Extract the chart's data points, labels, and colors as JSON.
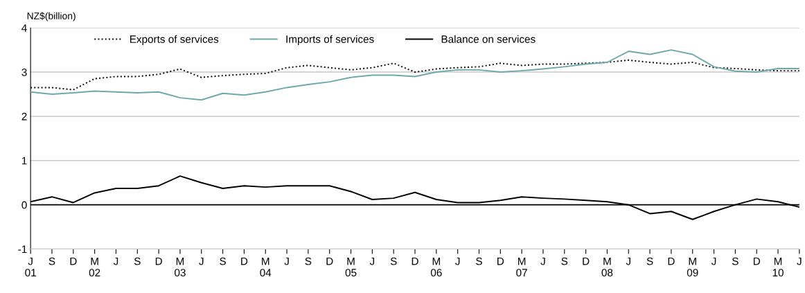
{
  "chart_data": {
    "type": "line",
    "ylabel": "NZ$(billion)",
    "categories": [
      "J\n01",
      "S",
      "D",
      "M\n02",
      "J",
      "S",
      "D",
      "M\n03",
      "J",
      "S",
      "D",
      "M\n04",
      "J",
      "S",
      "D",
      "M\n05",
      "J",
      "S",
      "D",
      "M\n06",
      "J",
      "S",
      "D",
      "M\n07",
      "J",
      "S",
      "D",
      "M\n08",
      "J",
      "S",
      "D",
      "M\n09",
      "J",
      "S",
      "D",
      "M\n10",
      "J"
    ],
    "series": [
      {
        "name": "Exports of services",
        "color": "#000000",
        "line_style": "dotted",
        "values": [
          2.65,
          2.65,
          2.6,
          2.85,
          2.9,
          2.9,
          2.95,
          3.07,
          2.88,
          2.92,
          2.95,
          2.97,
          3.1,
          3.15,
          3.1,
          3.05,
          3.1,
          3.2,
          3.0,
          3.07,
          3.1,
          3.12,
          3.2,
          3.15,
          3.18,
          3.18,
          3.2,
          3.22,
          3.27,
          3.22,
          3.18,
          3.22,
          3.1,
          3.08,
          3.05,
          3.03,
          3.03
        ]
      },
      {
        "name": "Imports of services",
        "color": "#6fa8a8",
        "line_style": "solid",
        "values": [
          2.55,
          2.5,
          2.53,
          2.57,
          2.55,
          2.53,
          2.55,
          2.42,
          2.37,
          2.52,
          2.48,
          2.55,
          2.65,
          2.72,
          2.78,
          2.88,
          2.93,
          2.93,
          2.9,
          3.0,
          3.05,
          3.05,
          3.0,
          3.03,
          3.07,
          3.12,
          3.18,
          3.22,
          3.47,
          3.4,
          3.5,
          3.4,
          3.12,
          3.02,
          3.0,
          3.08,
          3.08
        ]
      },
      {
        "name": "Balance on services",
        "color": "#000000",
        "line_style": "solid",
        "values": [
          0.07,
          0.18,
          0.05,
          0.27,
          0.37,
          0.37,
          0.43,
          0.65,
          0.5,
          0.37,
          0.43,
          0.4,
          0.43,
          0.43,
          0.43,
          0.3,
          0.12,
          0.15,
          0.28,
          0.12,
          0.05,
          0.05,
          0.1,
          0.18,
          0.15,
          0.13,
          0.1,
          0.07,
          0.0,
          -0.2,
          -0.15,
          -0.33,
          -0.15,
          0.0,
          0.13,
          0.07,
          -0.05
        ]
      }
    ],
    "ylim": [
      -1,
      4
    ],
    "yticks": [
      -1,
      0,
      1,
      2,
      3,
      4
    ],
    "ref_lines": [
      {
        "axis": "y",
        "value": 0,
        "color": "#000000"
      }
    ],
    "grid": "y",
    "legend": "top",
    "marker": "none"
  }
}
